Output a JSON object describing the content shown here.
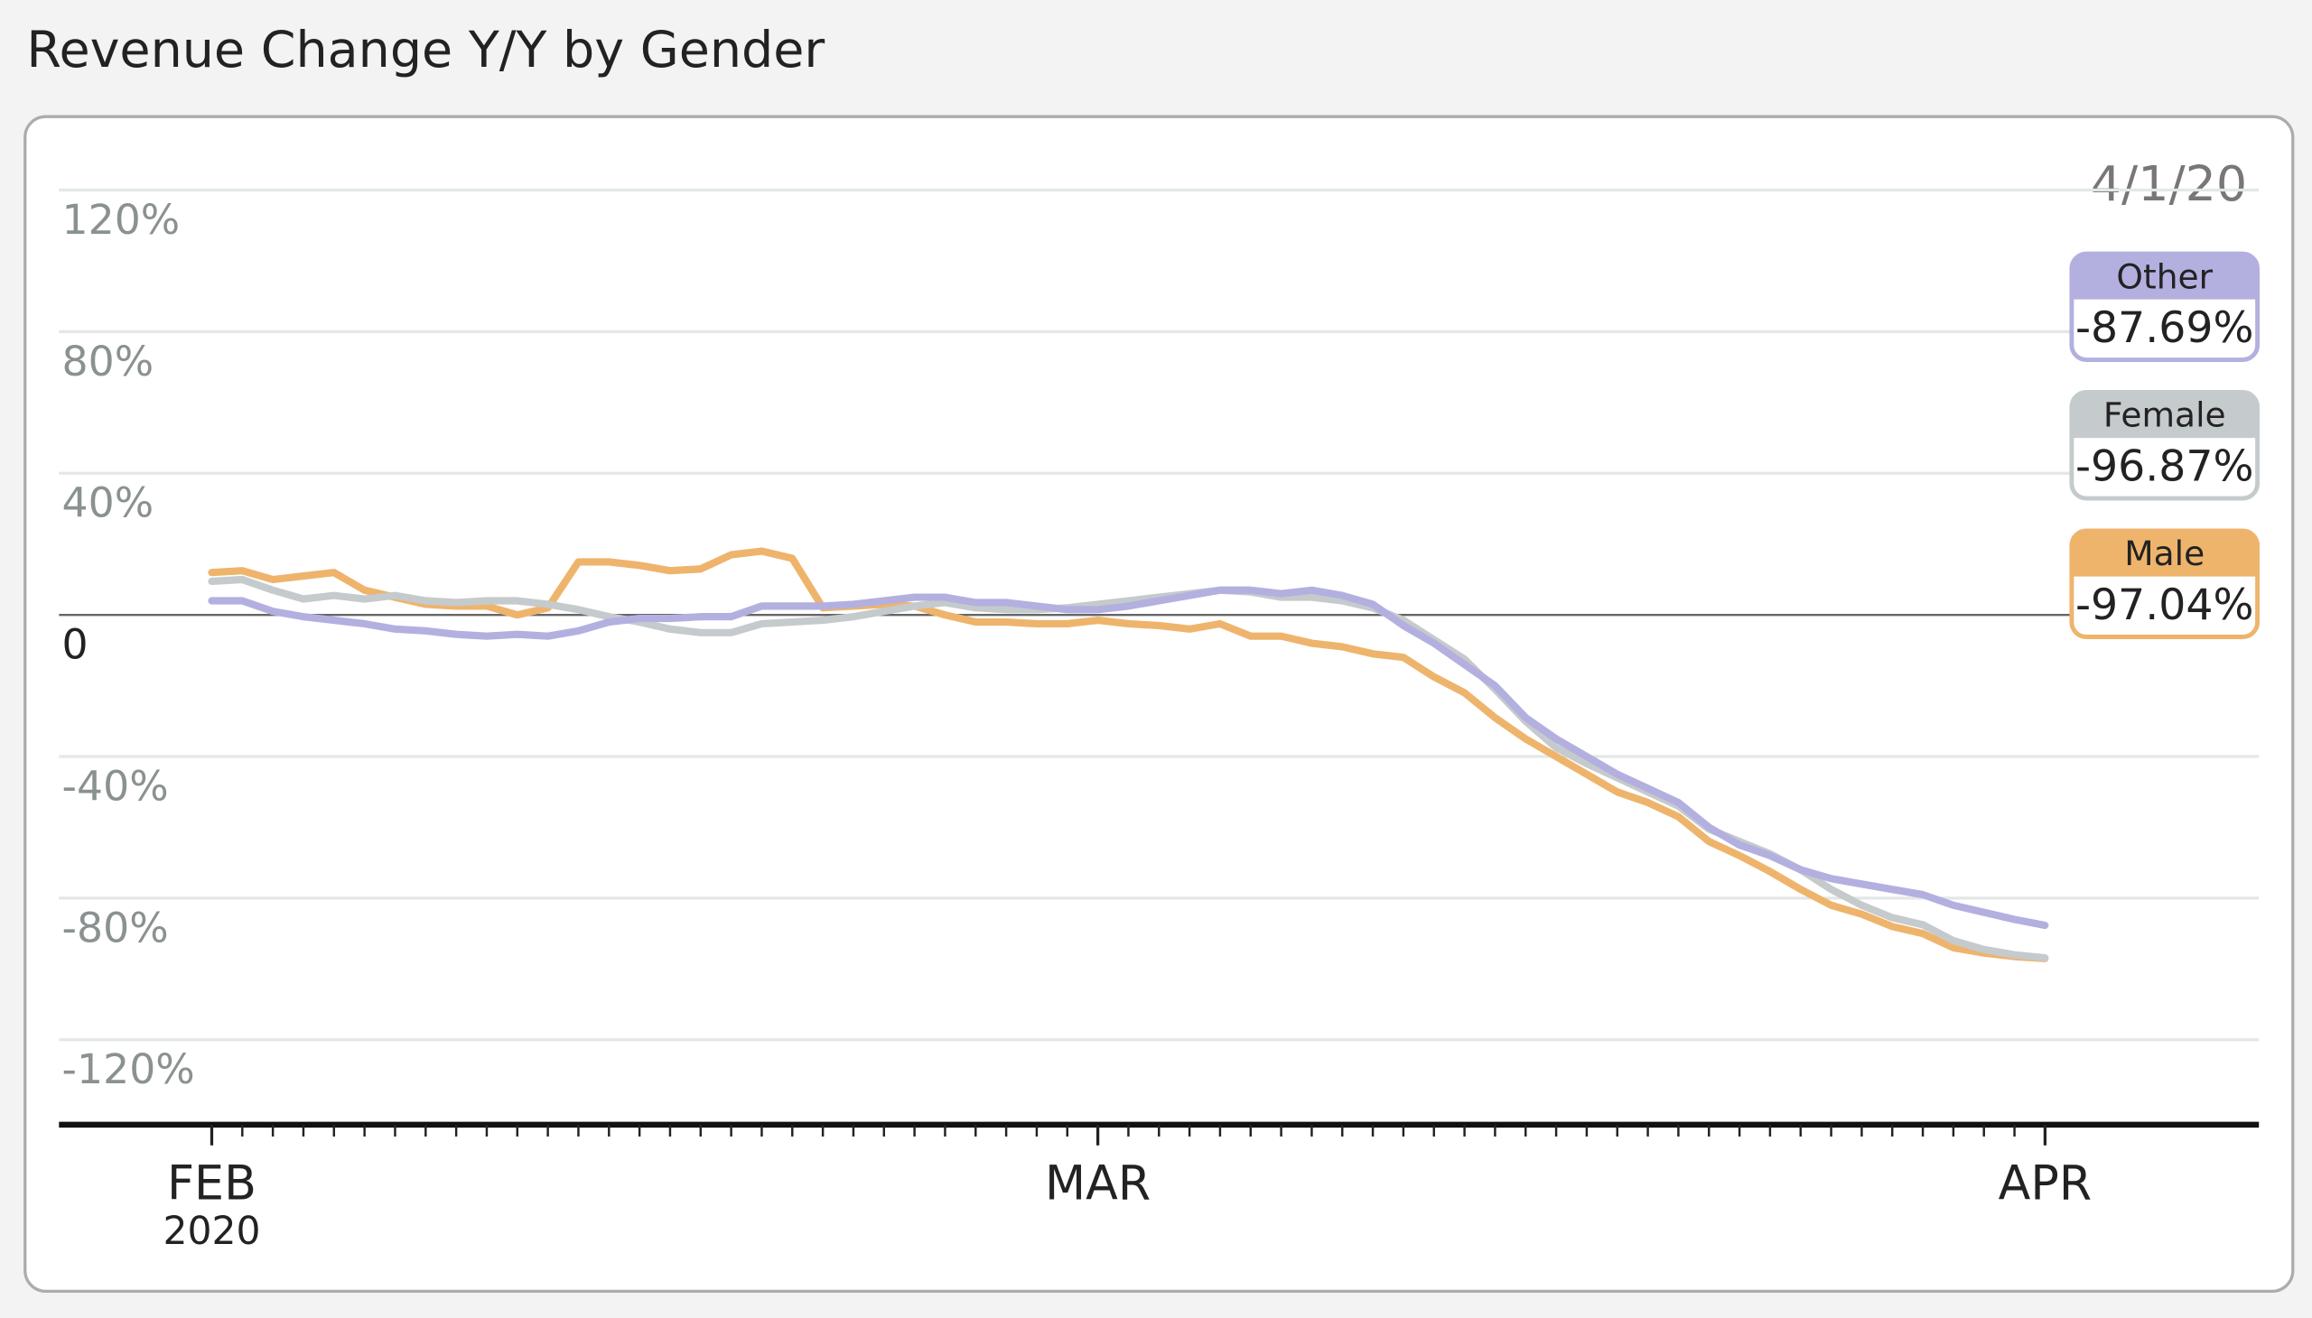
{
  "chart_data": {
    "type": "line",
    "title": "Revenue Change Y/Y by Gender",
    "date_label": "4/1/20",
    "x": [
      "2020-02-01",
      "2020-02-02",
      "2020-02-03",
      "2020-02-04",
      "2020-02-05",
      "2020-02-06",
      "2020-02-07",
      "2020-02-08",
      "2020-02-09",
      "2020-02-10",
      "2020-02-11",
      "2020-02-12",
      "2020-02-13",
      "2020-02-14",
      "2020-02-15",
      "2020-02-16",
      "2020-02-17",
      "2020-02-18",
      "2020-02-19",
      "2020-02-20",
      "2020-02-21",
      "2020-02-22",
      "2020-02-23",
      "2020-02-24",
      "2020-02-25",
      "2020-02-26",
      "2020-02-27",
      "2020-02-28",
      "2020-02-29",
      "2020-03-01",
      "2020-03-02",
      "2020-03-03",
      "2020-03-04",
      "2020-03-05",
      "2020-03-06",
      "2020-03-07",
      "2020-03-08",
      "2020-03-09",
      "2020-03-10",
      "2020-03-11",
      "2020-03-12",
      "2020-03-13",
      "2020-03-14",
      "2020-03-15",
      "2020-03-16",
      "2020-03-17",
      "2020-03-18",
      "2020-03-19",
      "2020-03-20",
      "2020-03-21",
      "2020-03-22",
      "2020-03-23",
      "2020-03-24",
      "2020-03-25",
      "2020-03-26",
      "2020-03-27",
      "2020-03-28",
      "2020-03-29",
      "2020-03-30",
      "2020-03-31",
      "2020-04-01"
    ],
    "xlim": [
      "2020-01-27",
      "2020-04-08"
    ],
    "xticks": [
      {
        "value": "2020-02-01",
        "label": "FEB"
      },
      {
        "value": "2020-03-01",
        "label": "MAR"
      },
      {
        "value": "2020-04-01",
        "label": "APR"
      }
    ],
    "x_year_label": "2020",
    "ylim": [
      -144,
      132
    ],
    "yticks": [
      {
        "value": 120,
        "label": "120%"
      },
      {
        "value": 80,
        "label": "80%"
      },
      {
        "value": 40,
        "label": "40%"
      },
      0,
      {
        "value": -40,
        "label": "-40%"
      },
      {
        "value": -80,
        "label": "-80%"
      },
      {
        "value": -120,
        "label": "-120%"
      }
    ],
    "grid": true,
    "series": [
      {
        "name": "Other",
        "color": "#b3b0e0",
        "values": [
          4,
          4,
          1,
          -0.5,
          -1.5,
          -2.5,
          -4,
          -4.5,
          -5.5,
          -6,
          -5.5,
          -6,
          -4.5,
          -2,
          -1,
          -1,
          -0.5,
          -0.5,
          2.5,
          2.5,
          2.5,
          3,
          4,
          5,
          5,
          3.5,
          3.5,
          2.5,
          1.5,
          1.5,
          2.5,
          4,
          5.5,
          7,
          7,
          6,
          7,
          5.5,
          3,
          -3,
          -8,
          -14,
          -20,
          -29,
          -35,
          -40,
          -45,
          -49,
          -53,
          -60,
          -65,
          -68,
          -72,
          -74.5,
          -76,
          -77.5,
          -79,
          -82,
          -84,
          -86,
          -87.69
        ],
        "value_labels": [
          null,
          null,
          null,
          null,
          null,
          null,
          null,
          null,
          null,
          null,
          null,
          null,
          null,
          null,
          null,
          null,
          null,
          null,
          null,
          null,
          null,
          null,
          null,
          null,
          null,
          null,
          null,
          null,
          null,
          null,
          null,
          null,
          null,
          null,
          null,
          null,
          null,
          null,
          null,
          null,
          null,
          null,
          null,
          null,
          null,
          null,
          null,
          null,
          null,
          null,
          null,
          null,
          null,
          null,
          null,
          null,
          null,
          null,
          null,
          null,
          "-87.69%"
        ]
      },
      {
        "name": "Female",
        "color": "#c5cacd",
        "values": [
          9.5,
          10,
          7,
          4.5,
          5.5,
          4.5,
          5.5,
          4,
          3.5,
          4,
          4,
          3,
          1.5,
          -0.5,
          -2,
          -4,
          -5,
          -5,
          -2.5,
          -2,
          -1.5,
          -0.5,
          1,
          2.5,
          3.5,
          2,
          1.5,
          1.5,
          2,
          3,
          4,
          5,
          6,
          7,
          6.5,
          5,
          5,
          4,
          2,
          -1.5,
          -7,
          -12.5,
          -21,
          -30,
          -37.5,
          -42,
          -46,
          -50,
          -54,
          -60.5,
          -64,
          -67.5,
          -72,
          -77.5,
          -82,
          -85.5,
          -87.5,
          -92,
          -94.5,
          -96,
          -96.87
        ],
        "value_labels": [
          null,
          null,
          null,
          null,
          null,
          null,
          null,
          null,
          null,
          null,
          null,
          null,
          null,
          null,
          null,
          null,
          null,
          null,
          null,
          null,
          null,
          null,
          null,
          null,
          null,
          null,
          null,
          null,
          null,
          null,
          null,
          null,
          null,
          null,
          null,
          null,
          null,
          null,
          null,
          null,
          null,
          null,
          null,
          null,
          null,
          null,
          null,
          null,
          null,
          null,
          null,
          null,
          null,
          null,
          null,
          null,
          null,
          null,
          null,
          null,
          "-96.87%"
        ]
      },
      {
        "name": "Male",
        "color": "#eeb46c",
        "values": [
          12,
          12.5,
          10,
          11,
          12,
          7,
          5,
          3,
          2.5,
          2.5,
          0,
          2,
          15,
          15,
          14,
          12.5,
          13,
          17,
          18,
          16,
          2,
          2.5,
          3,
          2.5,
          0,
          -2,
          -2,
          -2.5,
          -2.5,
          -1.5,
          -2.5,
          -3,
          -4,
          -2.5,
          -6,
          -6,
          -8,
          -9,
          -11,
          -12,
          -17.5,
          -22,
          -29,
          -35,
          -40,
          -45,
          -50,
          -53,
          -57,
          -64,
          -68,
          -72.5,
          -77.5,
          -82,
          -84.5,
          -88,
          -90,
          -94,
          -95.5,
          -96.5,
          -97.04
        ],
        "value_labels": [
          null,
          null,
          null,
          null,
          null,
          null,
          null,
          null,
          null,
          null,
          null,
          null,
          null,
          null,
          null,
          null,
          null,
          null,
          null,
          null,
          null,
          null,
          null,
          null,
          null,
          null,
          null,
          null,
          null,
          null,
          null,
          null,
          null,
          null,
          null,
          null,
          null,
          null,
          null,
          null,
          null,
          null,
          null,
          null,
          null,
          null,
          null,
          null,
          null,
          null,
          null,
          null,
          null,
          null,
          null,
          null,
          null,
          null,
          null,
          null,
          "-97.04%"
        ]
      }
    ]
  }
}
